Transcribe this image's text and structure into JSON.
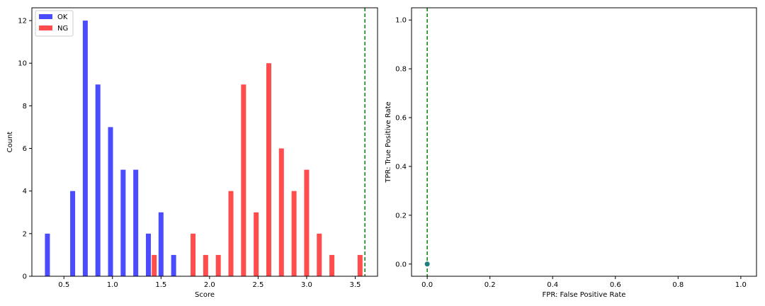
{
  "chart_data": [
    {
      "type": "bar",
      "xlabel": "Score",
      "ylabel": "Count",
      "xlim": [
        0.17,
        3.73
      ],
      "ylim": [
        0,
        12.6
      ],
      "xticks": [
        "0.5",
        "1.0",
        "1.5",
        "2.0",
        "2.5",
        "3.0",
        "3.5"
      ],
      "yticks": [
        "0",
        "2",
        "4",
        "6",
        "8",
        "10",
        "12"
      ],
      "legend_position": "top-left",
      "threshold_line": {
        "x": 3.6,
        "color": "#008000",
        "style": "dashed"
      },
      "series": [
        {
          "name": "OK",
          "color": "#0000ff",
          "bins": [
            {
              "x": 0.33,
              "value": 2
            },
            {
              "x": 0.59,
              "value": 4
            },
            {
              "x": 0.72,
              "value": 12
            },
            {
              "x": 0.85,
              "value": 9
            },
            {
              "x": 0.98,
              "value": 7
            },
            {
              "x": 1.11,
              "value": 5
            },
            {
              "x": 1.24,
              "value": 5
            },
            {
              "x": 1.37,
              "value": 2
            },
            {
              "x": 1.5,
              "value": 3
            },
            {
              "x": 1.63,
              "value": 1
            }
          ]
        },
        {
          "name": "NG",
          "color": "#ff0000",
          "bins": [
            {
              "x": 1.43,
              "value": 1
            },
            {
              "x": 1.83,
              "value": 2
            },
            {
              "x": 1.96,
              "value": 1
            },
            {
              "x": 2.09,
              "value": 1
            },
            {
              "x": 2.22,
              "value": 4
            },
            {
              "x": 2.35,
              "value": 9
            },
            {
              "x": 2.48,
              "value": 3
            },
            {
              "x": 2.61,
              "value": 10
            },
            {
              "x": 2.74,
              "value": 6
            },
            {
              "x": 2.87,
              "value": 4
            },
            {
              "x": 3.0,
              "value": 5
            },
            {
              "x": 3.13,
              "value": 2
            },
            {
              "x": 3.26,
              "value": 1
            },
            {
              "x": 3.55,
              "value": 1
            }
          ]
        }
      ]
    },
    {
      "type": "scatter",
      "xlabel": "FPR: False Positive Rate",
      "ylabel": "TPR: True Positive Rate",
      "xlim": [
        -0.05,
        1.05
      ],
      "ylim": [
        -0.05,
        1.05
      ],
      "xticks": [
        "0.0",
        "0.2",
        "0.4",
        "0.6",
        "0.8",
        "1.0"
      ],
      "yticks": [
        "0.0",
        "0.2",
        "0.4",
        "0.6",
        "0.8",
        "1.0"
      ],
      "threshold_line": {
        "x": 0.0,
        "color": "#008000",
        "style": "dashed"
      },
      "points": [
        {
          "x": 0.0,
          "y": 0.0,
          "color": "#1f7f7f"
        }
      ]
    }
  ]
}
